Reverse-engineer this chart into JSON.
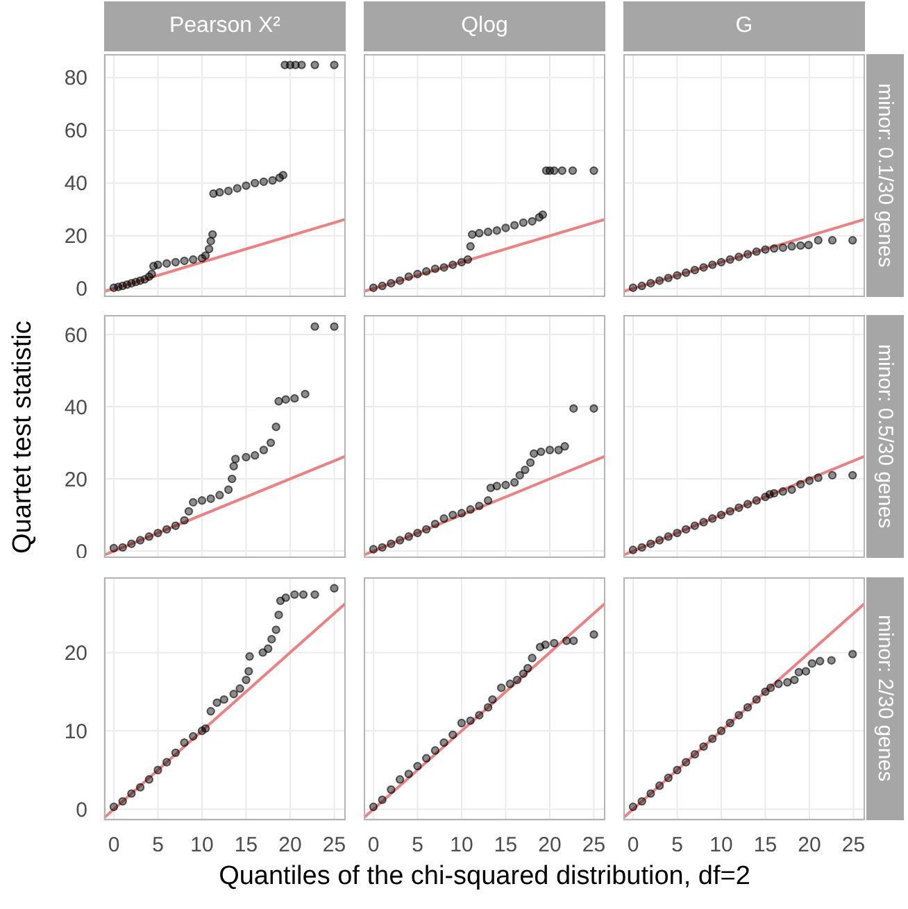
{
  "chart_data": [
    {
      "type": "scatter",
      "title": "Pearson X²",
      "xlim": [
        -1.1,
        26.3
      ],
      "ylim": [
        -3.2,
        88.9
      ],
      "xticks": [
        0,
        5,
        10,
        15,
        20,
        25
      ],
      "yticks": [
        0,
        20,
        40,
        60,
        80
      ],
      "grid": true,
      "tick_labels": "y",
      "series": [
        {
          "type": "scatter",
          "color": "#000000",
          "x": [
            0,
            0.5,
            1,
            1.5,
            2,
            2.5,
            3,
            3.5,
            4,
            4.3,
            4.5,
            5,
            6,
            7,
            8,
            9,
            10,
            10.4,
            10.8,
            11,
            11.2,
            11.3,
            12,
            13,
            14,
            15,
            16,
            17,
            18,
            18.8,
            19.2,
            19.4,
            20,
            20.6,
            21.3,
            22.8,
            25
          ],
          "values": [
            0.3,
            0.6,
            1,
            1.5,
            2,
            2.5,
            3,
            3.5,
            4.5,
            5.5,
            8.5,
            9,
            9.5,
            10,
            10.5,
            11,
            11.5,
            12.5,
            15,
            18,
            20.5,
            36,
            36.5,
            37,
            38,
            39,
            40,
            40.5,
            41,
            42,
            43,
            84.8,
            84.8,
            84.8,
            84.8,
            84.8,
            84.8
          ]
        },
        {
          "type": "line",
          "color": "#f08080",
          "x": [
            -1.1,
            26.3
          ],
          "values": [
            -1.1,
            26.3
          ]
        }
      ]
    },
    {
      "type": "scatter",
      "title": "Qlog",
      "xlim": [
        -1.1,
        26.3
      ],
      "ylim": [
        -3.2,
        88.9
      ],
      "xticks": [
        0,
        5,
        10,
        15,
        20,
        25
      ],
      "yticks": [
        0,
        20,
        40,
        60,
        80
      ],
      "grid": true,
      "tick_labels": false,
      "series": [
        {
          "type": "scatter",
          "color": "#000000",
          "x": [
            0,
            1,
            2,
            3,
            4,
            5,
            6,
            7,
            8,
            9,
            10,
            10.7,
            11,
            11.2,
            12,
            13,
            14,
            15,
            16,
            17,
            18,
            18.8,
            19.2,
            19.6,
            20,
            20.5,
            21.4,
            22.6,
            25
          ],
          "values": [
            0.3,
            1,
            2,
            3,
            4.5,
            5.5,
            6.5,
            7.5,
            8,
            9,
            10,
            11,
            16,
            20.5,
            21,
            21.5,
            22,
            23,
            24,
            25,
            25.5,
            27,
            28,
            44.7,
            44.7,
            44.7,
            44.7,
            44.7,
            44.7
          ]
        },
        {
          "type": "line",
          "color": "#f08080",
          "x": [
            -1.1,
            26.3
          ],
          "values": [
            -1.1,
            26.3
          ]
        }
      ]
    },
    {
      "type": "scatter",
      "title": "G",
      "annotations": [
        "minor: 0.1/30 genes"
      ],
      "xlim": [
        -1.1,
        26.3
      ],
      "ylim": [
        -3.2,
        88.9
      ],
      "xticks": [
        0,
        5,
        10,
        15,
        20,
        25
      ],
      "yticks": [
        0,
        20,
        40,
        60,
        80
      ],
      "grid": true,
      "tick_labels": false,
      "series": [
        {
          "type": "scatter",
          "color": "#000000",
          "x": [
            0,
            1,
            2,
            3,
            4,
            5,
            6,
            7,
            8,
            9,
            10,
            11,
            12,
            13,
            14,
            15,
            16,
            17,
            18,
            19,
            19.9,
            21,
            22.6,
            24.9
          ],
          "values": [
            0.3,
            1,
            2,
            3,
            4,
            5,
            6,
            7,
            8,
            9,
            10,
            11,
            12,
            13,
            14,
            14.8,
            15.2,
            15.5,
            16,
            16.3,
            16.5,
            18.3,
            18.3,
            18.3
          ]
        },
        {
          "type": "line",
          "color": "#f08080",
          "x": [
            -1.1,
            26.3
          ],
          "values": [
            -1.1,
            26.3
          ]
        }
      ]
    },
    {
      "type": "scatter",
      "ylabel": "Quartet test statistic",
      "xlim": [
        -1.1,
        26.3
      ],
      "ylim": [
        -1.9,
        65.4
      ],
      "xticks": [
        0,
        5,
        10,
        15,
        20,
        25
      ],
      "yticks": [
        0,
        20,
        40,
        60
      ],
      "grid": true,
      "tick_labels": "y",
      "series": [
        {
          "type": "scatter",
          "color": "#000000",
          "x": [
            0,
            1,
            2,
            3,
            4,
            5,
            6,
            7,
            8,
            8.5,
            9,
            10,
            11,
            12,
            13,
            13.4,
            13.6,
            13.8,
            15,
            16,
            17,
            17.8,
            18.4,
            18.7,
            19.5,
            20.5,
            21.7,
            22.8,
            25
          ],
          "values": [
            0.8,
            1,
            2,
            3,
            4,
            5,
            6,
            7,
            8.5,
            11,
            13.5,
            14,
            14.5,
            15.5,
            17,
            20,
            23.5,
            25.5,
            26,
            26.5,
            28,
            30,
            34.4,
            41.5,
            42,
            42.3,
            43.5,
            62.2,
            62.2
          ]
        },
        {
          "type": "line",
          "color": "#f08080",
          "x": [
            -1.1,
            26.3
          ],
          "values": [
            -1.1,
            26.3
          ]
        }
      ]
    },
    {
      "type": "scatter",
      "xlim": [
        -1.1,
        26.3
      ],
      "ylim": [
        -1.9,
        65.4
      ],
      "xticks": [
        0,
        5,
        10,
        15,
        20,
        25
      ],
      "yticks": [
        0,
        20,
        40,
        60
      ],
      "grid": true,
      "tick_labels": false,
      "series": [
        {
          "type": "scatter",
          "color": "#000000",
          "x": [
            0,
            1,
            2,
            3,
            4,
            5,
            6,
            7,
            8,
            9,
            10,
            11,
            12,
            13,
            13.3,
            14,
            15,
            16,
            16.6,
            17.2,
            17.8,
            18.2,
            19,
            20,
            21,
            21.7,
            22.7,
            25
          ],
          "values": [
            0.5,
            1,
            2,
            3,
            4,
            5,
            6,
            7.5,
            9,
            10,
            10.5,
            11.5,
            12.5,
            14,
            17.5,
            18,
            18.3,
            19,
            21,
            22.5,
            24.5,
            27,
            27.5,
            28,
            28,
            29,
            39.5,
            39.5
          ]
        },
        {
          "type": "line",
          "color": "#f08080",
          "x": [
            -1.1,
            26.3
          ],
          "values": [
            -1.1,
            26.3
          ]
        }
      ]
    },
    {
      "type": "scatter",
      "annotations": [
        "minor: 0.5/30 genes"
      ],
      "xlim": [
        -1.1,
        26.3
      ],
      "ylim": [
        -1.9,
        65.4
      ],
      "xticks": [
        0,
        5,
        10,
        15,
        20,
        25
      ],
      "yticks": [
        0,
        20,
        40,
        60
      ],
      "grid": true,
      "tick_labels": false,
      "series": [
        {
          "type": "scatter",
          "color": "#000000",
          "x": [
            0,
            1,
            2,
            3,
            4,
            5,
            6,
            7,
            8,
            9,
            10,
            11,
            12,
            13,
            14,
            15,
            15.5,
            16,
            17,
            18,
            19,
            20,
            21,
            22.6,
            24.9
          ],
          "values": [
            0.3,
            1,
            2,
            3,
            4,
            5,
            6,
            7,
            8,
            9,
            10,
            11,
            12,
            13,
            14,
            15,
            15.7,
            16,
            16.5,
            17,
            18.5,
            19.5,
            20.3,
            21,
            21
          ]
        },
        {
          "type": "line",
          "color": "#f08080",
          "x": [
            -1.1,
            26.3
          ],
          "values": [
            -1.1,
            26.3
          ]
        }
      ]
    },
    {
      "type": "scatter",
      "xlim": [
        -1.1,
        26.3
      ],
      "ylim": [
        -1.4,
        29.6
      ],
      "xticks": [
        0,
        5,
        10,
        15,
        20,
        25
      ],
      "yticks": [
        0,
        10,
        20
      ],
      "grid": true,
      "series": [
        {
          "type": "scatter",
          "color": "#000000",
          "x": [
            0,
            1,
            2,
            3,
            4,
            5,
            6,
            7,
            8,
            9,
            10,
            10.4,
            11,
            11.7,
            12.5,
            13.6,
            14.3,
            15,
            15.3,
            15.4,
            16.9,
            17.5,
            17.9,
            18.4,
            18.7,
            18.9,
            19.5,
            20.5,
            21.5,
            22.8,
            25
          ],
          "values": [
            0.3,
            1,
            2,
            2.8,
            3.8,
            5,
            6,
            7.2,
            8.5,
            9.3,
            10,
            10.3,
            12.5,
            13.6,
            14,
            14.7,
            15.4,
            16.5,
            17.6,
            19.5,
            20,
            20.5,
            21.7,
            22.9,
            24.8,
            26.6,
            27,
            27.4,
            27.4,
            27.4,
            28.2
          ]
        },
        {
          "type": "line",
          "color": "#f08080",
          "x": [
            -1.1,
            26.3
          ],
          "values": [
            -1.1,
            26.3
          ]
        }
      ]
    },
    {
      "type": "scatter",
      "xlabel": "Quantiles of the chi-squared distribution, df=2",
      "xlim": [
        -1.1,
        26.3
      ],
      "ylim": [
        -1.4,
        29.6
      ],
      "xticks": [
        0,
        5,
        10,
        15,
        20,
        25
      ],
      "yticks": [
        0,
        10,
        20
      ],
      "grid": true,
      "tick_labels": "x",
      "series": [
        {
          "type": "scatter",
          "color": "#000000",
          "x": [
            0,
            1,
            2,
            3,
            4,
            5,
            6,
            7,
            8,
            9,
            10,
            11,
            12,
            13,
            13.5,
            14.5,
            15.5,
            16.3,
            17,
            17.5,
            18,
            18.9,
            19.5,
            20.5,
            21.9,
            22.7,
            25
          ],
          "values": [
            0.3,
            1.2,
            2.5,
            3.8,
            4.5,
            5.5,
            6.5,
            7.5,
            8.5,
            9.5,
            11,
            11.3,
            12,
            13,
            14,
            15.5,
            16,
            16.5,
            17.3,
            18,
            19.3,
            20.7,
            21,
            21.2,
            21.5,
            21.5,
            22.3
          ]
        },
        {
          "type": "line",
          "color": "#f08080",
          "x": [
            -1.1,
            26.3
          ],
          "values": [
            -1.1,
            26.3
          ]
        }
      ]
    },
    {
      "type": "scatter",
      "annotations": [
        "minor: 2/30 genes"
      ],
      "xlim": [
        -1.1,
        26.3
      ],
      "ylim": [
        -1.4,
        29.6
      ],
      "xticks": [
        0,
        5,
        10,
        15,
        20,
        25
      ],
      "yticks": [
        0,
        10,
        20
      ],
      "grid": true,
      "tick_labels": "x",
      "series": [
        {
          "type": "scatter",
          "color": "#000000",
          "x": [
            0,
            1,
            2,
            3,
            4,
            5,
            6,
            7,
            8,
            9,
            10,
            11,
            12,
            13,
            14,
            15,
            15.6,
            16.5,
            17.5,
            18.3,
            18.8,
            19.6,
            20.3,
            21.2,
            22.5,
            24.9
          ],
          "values": [
            0.3,
            1,
            2,
            3,
            4,
            5,
            6,
            7,
            8,
            9,
            10,
            11,
            12,
            13,
            14,
            15,
            15.5,
            16,
            16.2,
            16.5,
            17.5,
            17.6,
            18.6,
            18.9,
            19,
            19.8
          ]
        },
        {
          "type": "line",
          "color": "#f08080",
          "x": [
            -1.1,
            26.3
          ],
          "values": [
            -1.1,
            26.3
          ]
        }
      ]
    }
  ]
}
